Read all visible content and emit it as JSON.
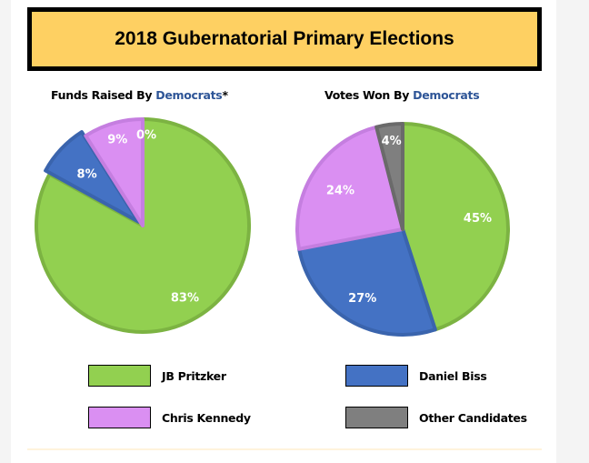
{
  "title": "2018 Gubernatorial Primary Elections",
  "chart_data": [
    {
      "type": "pie",
      "title_prefix": "Funds Raised By ",
      "title_party": "Democrats",
      "title_suffix": "*",
      "labels": [
        "JB Pritzker",
        "Daniel Biss",
        "Chris Kennedy",
        "Other Candidates"
      ],
      "values": [
        83,
        8,
        9,
        0
      ],
      "value_labels": [
        "83%",
        "8%",
        "9%",
        "0%"
      ]
    },
    {
      "type": "pie",
      "title_prefix": "Votes Won By ",
      "title_party": "Democrats",
      "title_suffix": "",
      "labels": [
        "JB Pritzker",
        "Daniel Biss",
        "Chris Kennedy",
        "Other Candidates"
      ],
      "values": [
        45,
        27,
        24,
        4
      ],
      "value_labels": [
        "45%",
        "27%",
        "24%",
        "4%"
      ]
    }
  ],
  "legend": [
    {
      "label": "JB Pritzker",
      "color": "#92d050"
    },
    {
      "label": "Daniel Biss",
      "color": "#4472c4"
    },
    {
      "label": "Chris Kennedy",
      "color": "#da8ff2"
    },
    {
      "label": "Other Candidates",
      "color": "#7f7f7f"
    }
  ],
  "colors": [
    "#92d050",
    "#4472c4",
    "#da8ff2",
    "#7f7f7f"
  ],
  "borders": [
    "#7cb342",
    "#3a64ad",
    "#c57ee0",
    "#6a6a6a"
  ]
}
